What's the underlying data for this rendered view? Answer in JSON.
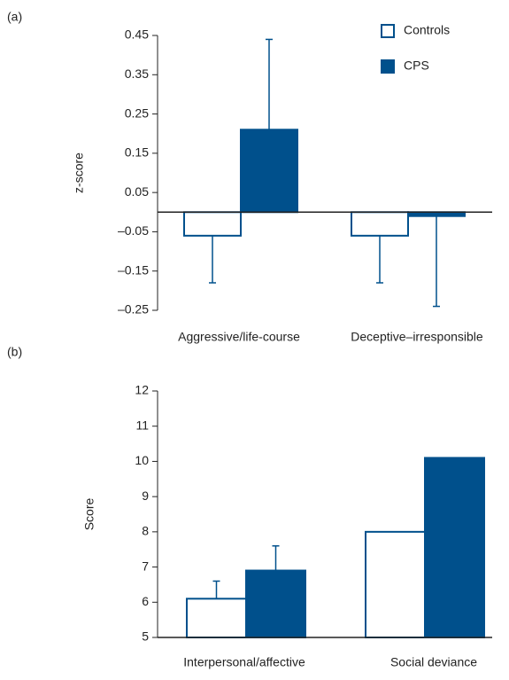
{
  "chart_data": [
    {
      "type": "bar",
      "panel": "(a)",
      "ylabel": "z-score",
      "categories": [
        "Aggressive/life-course",
        "Deceptive–irresponsible"
      ],
      "series": [
        {
          "name": "Controls",
          "color": "#ffffff",
          "stroke": "#00508c",
          "values": [
            -0.06,
            -0.06
          ],
          "errors": [
            0.12,
            0.12
          ]
        },
        {
          "name": "CPS",
          "color": "#00508c",
          "stroke": "#00508c",
          "values": [
            0.21,
            -0.01
          ],
          "errors": [
            0.23,
            0.23
          ]
        }
      ],
      "ylim": [
        -0.25,
        0.45
      ],
      "yticks": [
        {
          "value": -0.25,
          "label": "–0.25"
        },
        {
          "value": -0.15,
          "label": "–0.15"
        },
        {
          "value": -0.05,
          "label": "–0.05"
        },
        0.05,
        0.15,
        0.25,
        0.35,
        0.45
      ],
      "legend": "top-right"
    },
    {
      "type": "bar",
      "panel": "(b)",
      "ylabel": "Score",
      "categories": [
        "Interpersonal/affective",
        "Social deviance"
      ],
      "series": [
        {
          "color": "#ffffff",
          "stroke": "#00508c",
          "values": [
            6.1,
            8.0
          ],
          "errors": [
            0.5,
            null
          ]
        },
        {
          "color": "#00508c",
          "stroke": "#00508c",
          "values": [
            6.9,
            10.1
          ],
          "errors": [
            0.7,
            null
          ]
        }
      ],
      "ylim": [
        5,
        12
      ],
      "yticks": [
        5,
        6,
        7,
        8,
        9,
        10,
        11,
        12
      ]
    }
  ]
}
